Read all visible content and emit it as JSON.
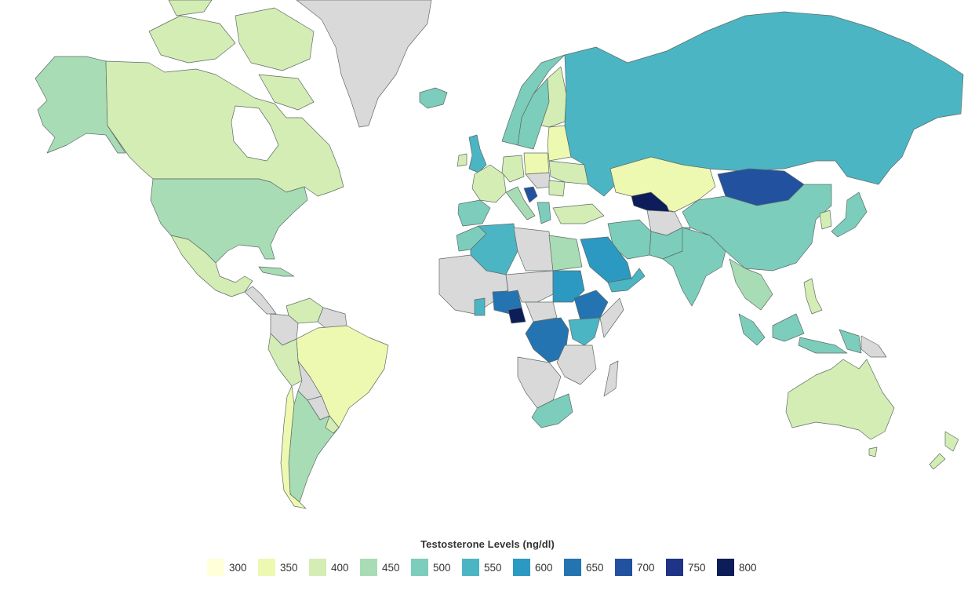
{
  "legend": {
    "title": "Testosterone Levels (ng/dl)",
    "items": [
      {
        "label": "300",
        "color": "#ffffd9"
      },
      {
        "label": "350",
        "color": "#edf8b1"
      },
      {
        "label": "400",
        "color": "#d3edb4"
      },
      {
        "label": "450",
        "color": "#a8dcb5"
      },
      {
        "label": "500",
        "color": "#7ccdbb"
      },
      {
        "label": "550",
        "color": "#4bb5c4"
      },
      {
        "label": "600",
        "color": "#2b99c1"
      },
      {
        "label": "650",
        "color": "#2474b1"
      },
      {
        "label": "700",
        "color": "#2251a0"
      },
      {
        "label": "750",
        "color": "#1f3486"
      },
      {
        "label": "800",
        "color": "#0c1d59"
      }
    ]
  },
  "no_data_color": "#d9d9d9"
}
